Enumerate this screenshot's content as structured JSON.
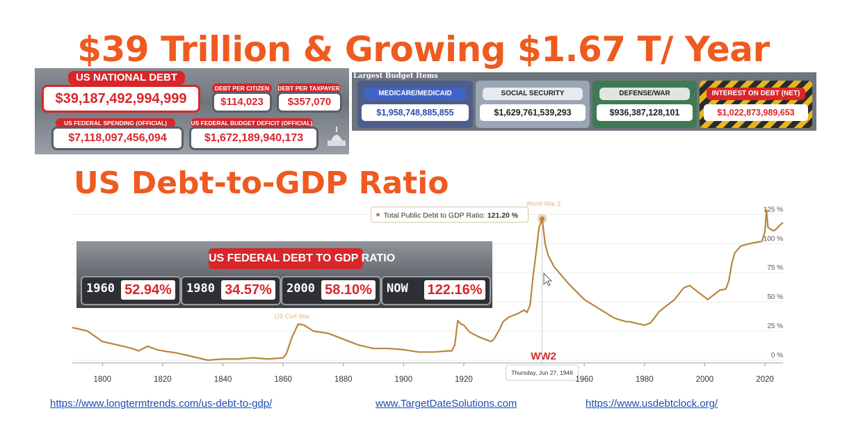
{
  "headline": "$39 Trillion & Growing $1.67 T/ Year",
  "subheadline": "US Debt-to-GDP Ratio",
  "debt_clock": {
    "national_debt_label": "US NATIONAL DEBT",
    "national_debt_value": "$39,187,492,994,999",
    "per_citizen_label": "DEBT PER CITIZEN",
    "per_citizen_value": "$114,023",
    "per_taxpayer_label": "DEBT PER TAXPAYER",
    "per_taxpayer_value": "$357,070",
    "spending_label": "US FEDERAL SPENDING (OFFICIAL)",
    "spending_value": "$7,118,097,456,094",
    "deficit_label": "US FEDERAL BUDGET DEFICIT (OFFICIAL)",
    "deficit_value": "$1,672,189,940,173"
  },
  "budget_items": {
    "heading": "Largest Budget Items",
    "items": [
      {
        "label": "MEDICARE/MEDICAID",
        "value": "$1,958,748,885,855"
      },
      {
        "label": "SOCIAL SECURITY",
        "value": "$1,629,761,539,293"
      },
      {
        "label": "DEFENSE/WAR",
        "value": "$936,387,128,101"
      },
      {
        "label": "INTEREST ON DEBT (NET)",
        "value": "$1,022,873,989,653"
      }
    ]
  },
  "ratio_panel": {
    "title": "US FEDERAL DEBT TO GDP RATIO",
    "cells": [
      {
        "year": "1960",
        "value": "52.94%"
      },
      {
        "year": "1980",
        "value": "34.57%"
      },
      {
        "year": "2000",
        "value": "58.10%"
      },
      {
        "year": "NOW",
        "value": "122.16%"
      }
    ]
  },
  "chart_data": {
    "type": "line",
    "title": "",
    "xlabel": "",
    "ylabel": "",
    "xlim": [
      1790,
      2026
    ],
    "ylim": [
      0,
      130
    ],
    "x_ticks": [
      1800,
      1820,
      1840,
      1860,
      1880,
      1900,
      1920,
      1960,
      1980,
      2000,
      2020
    ],
    "y_ticks": [
      "0 %",
      "25 %",
      "50 %",
      "75 %",
      "100 %",
      "125 %"
    ],
    "y_tick_values": [
      0,
      25,
      50,
      75,
      100,
      125
    ],
    "series": [
      {
        "name": "Total Public Debt to GDP Ratio",
        "color": "#b8853c",
        "x": [
          1790,
          1795,
          1800,
          1805,
          1810,
          1812,
          1815,
          1818,
          1820,
          1825,
          1830,
          1835,
          1840,
          1843,
          1845,
          1850,
          1855,
          1860,
          1861,
          1863,
          1865,
          1867,
          1870,
          1875,
          1880,
          1885,
          1890,
          1895,
          1900,
          1905,
          1910,
          1915,
          1916,
          1917,
          1918,
          1919,
          1920,
          1922,
          1925,
          1929,
          1930,
          1932,
          1933,
          1935,
          1938,
          1940,
          1941,
          1942,
          1943,
          1944,
          1945,
          1946,
          1947,
          1948,
          1950,
          1955,
          1960,
          1965,
          1970,
          1974,
          1975,
          1980,
          1982,
          1985,
          1990,
          1993,
          1995,
          2000,
          2001,
          2005,
          2007,
          2008,
          2009,
          2010,
          2012,
          2015,
          2019,
          2020,
          2020.5,
          2021,
          2022,
          2023,
          2024,
          2025,
          2026
        ],
        "y": [
          28,
          25,
          16,
          13,
          10,
          8,
          12,
          9,
          8,
          6,
          3,
          0,
          1,
          1,
          1,
          2,
          1,
          2,
          5,
          20,
          31,
          30,
          25,
          23,
          18,
          13,
          10,
          10,
          9,
          7,
          7,
          8,
          8,
          13,
          34,
          31,
          30,
          24,
          20,
          16,
          18,
          27,
          33,
          37,
          40,
          43,
          41,
          47,
          72,
          92,
          114,
          121.2,
          100,
          90,
          80,
          65,
          52,
          44,
          36,
          33,
          33,
          30,
          32,
          42,
          52,
          62,
          64,
          54,
          52,
          60,
          61,
          68,
          83,
          92,
          98,
          100,
          102,
          110,
          129,
          114,
          112,
          111,
          113,
          116,
          118
        ]
      }
    ],
    "annotations": [
      "World War 2",
      "US Civil War",
      "WW2"
    ],
    "tooltip": {
      "text_prefix": "Total Public Debt to GDP Ratio: ",
      "value_text": "121.20 %",
      "date": "Thursday, Jun 27, 1946"
    }
  },
  "links": [
    "https://www.longtermtrends.com/us-debt-to-gdp/",
    "www.TargetDateSolutions.com",
    "https://www.usdebtclock.org/"
  ]
}
